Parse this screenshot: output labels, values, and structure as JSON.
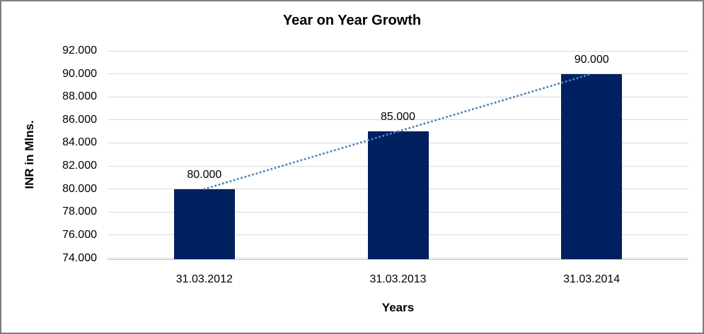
{
  "frame": {
    "background": "#FFFFFF",
    "border_color": "#7F7F7F"
  },
  "chart_data": {
    "type": "bar",
    "title": "Year on Year Growth",
    "xlabel": "Years",
    "ylabel": "INR in Mlns.",
    "categories": [
      "31.03.2012",
      "31.03.2013",
      "31.03.2014"
    ],
    "values": [
      80000,
      85000,
      90000
    ],
    "value_labels": [
      "80.000",
      "85.000",
      "90.000"
    ],
    "ylim": [
      74000,
      92000
    ],
    "yticks": [
      {
        "value": 74000,
        "label": "74.000"
      },
      {
        "value": 76000,
        "label": "76.000"
      },
      {
        "value": 78000,
        "label": "78.000"
      },
      {
        "value": 80000,
        "label": "80.000"
      },
      {
        "value": 82000,
        "label": "82.000"
      },
      {
        "value": 84000,
        "label": "84.000"
      },
      {
        "value": 86000,
        "label": "86.000"
      },
      {
        "value": 88000,
        "label": "88.000"
      },
      {
        "value": 90000,
        "label": "90.000"
      },
      {
        "value": 92000,
        "label": "92.000"
      }
    ],
    "grid": "horizontal",
    "legend": "none",
    "bar_color": "#002060",
    "gridline_color": "#D9D9D9",
    "axis_line_color": "#BFBFBF",
    "label_color": "#000000",
    "trendline": {
      "type": "linear",
      "style": "dotted",
      "color": "#4E86C6"
    }
  }
}
